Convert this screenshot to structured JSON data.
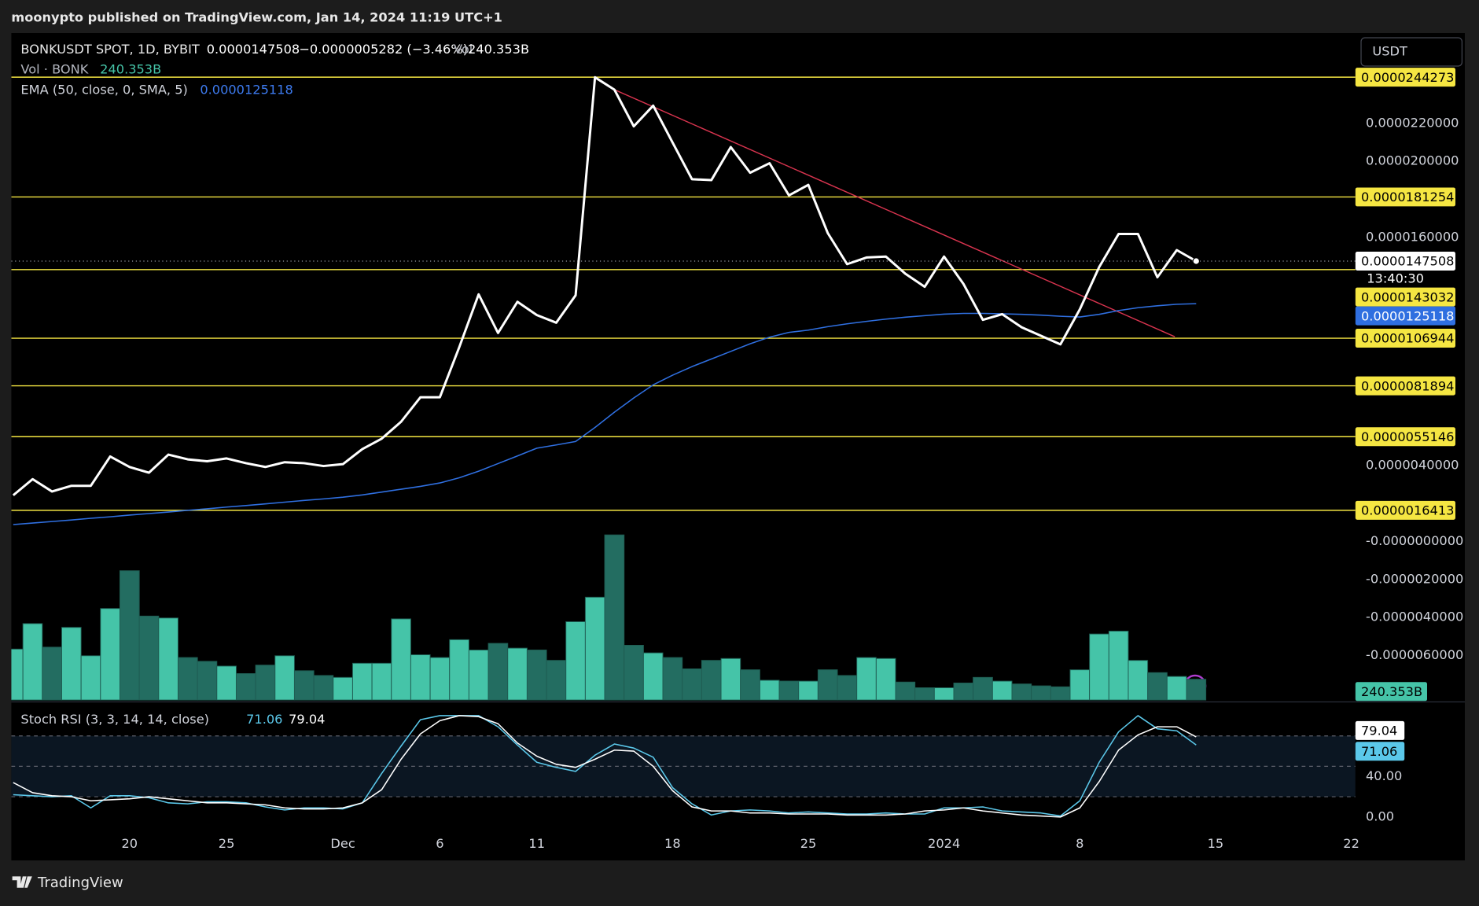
{
  "header": {
    "publisher": "moonypto published on TradingView.com, Jan 14, 2024 11:19 UTC+1",
    "currency": "USDT",
    "footer": "TradingView"
  },
  "chart_data": [
    {
      "type": "line",
      "symbol": "BONKUSDT SPOT, 1D, BYBIT",
      "change": "−0.0000005282 (−3.46%)",
      "countdown": "13:40:30",
      "ylim": [
        -8.34e-06,
        2.675e-05
      ],
      "yticks": [
        {
          "value": 2.2e-05,
          "label": "0.0000220000"
        },
        {
          "value": 2e-05,
          "label": "0.0000200000"
        },
        {
          "value": 1.6e-05,
          "label": "0.0000160000"
        },
        {
          "value": 4e-06,
          "label": "0.0000040000"
        },
        {
          "value": 0,
          "label": "-0.0000000000"
        },
        {
          "value": -2e-06,
          "label": "-0.0000020000"
        },
        {
          "value": -4e-06,
          "label": "-0.0000040000"
        },
        {
          "value": -6e-06,
          "label": "-0.0000060000"
        }
      ],
      "levels": [
        2.44273e-05,
        1.81254e-05,
        1.43032e-05,
        1.06944e-05,
        8.1894e-06,
        5.5146e-06,
        1.6413e-06
      ],
      "level_color": "#f5e642",
      "trendline": {
        "color": "#d9344f",
        "x": [
          31,
          59.9
        ],
        "values": [
          2.377e-05,
          1.077e-05
        ]
      },
      "series": [
        {
          "color": "#ffffff",
          "values": [
            2.43e-06,
            3.28e-06,
            2.63e-06,
            2.93e-06,
            2.93e-06,
            4.47e-06,
            3.92e-06,
            3.62e-06,
            4.57e-06,
            4.32e-06,
            4.22e-06,
            4.37e-06,
            4.12e-06,
            3.92e-06,
            4.17e-06,
            4.12e-06,
            3.97e-06,
            4.07e-06,
            4.86e-06,
            5.41e-06,
            6.3e-06,
            7.59e-06,
            7.59e-06,
            1.022e-05,
            1.3e-05,
            1.097e-05,
            1.261e-05,
            1.191e-05,
            1.151e-05,
            1.295e-05,
            2.442e-05,
            2.377e-05,
            2.184e-05,
            2.293e-05,
            2.099e-05,
            1.906e-05,
            1.901e-05,
            2.075e-05,
            1.94e-05,
            1.99e-05,
            1.821e-05,
            1.876e-05,
            1.623e-05,
            1.459e-05,
            1.494e-05,
            1.499e-05,
            1.409e-05,
            1.34e-05,
            1.499e-05,
            1.355e-05,
            1.166e-05,
            1.196e-05,
            1.127e-05,
            1.082e-05,
            1.037e-05,
            1.221e-05,
            1.444e-05,
            1.618e-05,
            1.618e-05,
            1.39e-05,
            1.533e-05,
            1.47508e-05,
            null,
            null,
            null,
            null,
            null,
            null,
            null,
            null
          ]
        },
        {
          "name": "EMA (50, close, 0, SMA, 5)",
          "color": "#2f6fe0",
          "values": [
            8.9e-07,
            9.7e-07,
            1.05e-06,
            1.13e-06,
            1.22e-06,
            1.3e-06,
            1.39e-06,
            1.47e-06,
            1.55e-06,
            1.64e-06,
            1.72e-06,
            1.81e-06,
            1.89e-06,
            1.98e-06,
            2.07e-06,
            2.16e-06,
            2.24e-06,
            2.33e-06,
            2.45e-06,
            2.6e-06,
            2.75e-06,
            2.9e-06,
            3.08e-06,
            3.35e-06,
            3.7e-06,
            4.1e-06,
            4.5e-06,
            4.91e-06,
            5.08e-06,
            5.26e-06,
            6e-06,
            6.8e-06,
            7.55e-06,
            8.24e-06,
            8.75e-06,
            9.2e-06,
            9.6e-06,
            1e-05,
            1.04e-05,
            1.075e-05,
            1.1e-05,
            1.112e-05,
            1.13e-05,
            1.145e-05,
            1.158e-05,
            1.17e-05,
            1.18e-05,
            1.188e-05,
            1.196e-05,
            1.2e-05,
            1.2e-05,
            1.198e-05,
            1.195e-05,
            1.191e-05,
            1.185e-05,
            1.181e-05,
            1.195e-05,
            1.215e-05,
            1.23e-05,
            1.24e-05,
            1.248e-05,
            1.25118e-05,
            null,
            null,
            null,
            null,
            null,
            null,
            null,
            null
          ]
        }
      ]
    },
    {
      "type": "bar",
      "name": "Vol · BONK",
      "label": "Vol",
      "up_color": "#45c4a8",
      "down_color": "#236d61",
      "ylim": [
        0,
        7724
      ],
      "values": [
        590,
        885,
        612,
        841,
        513,
        1060,
        1497,
        972,
        950,
        492,
        448,
        393,
        306,
        404,
        513,
        339,
        284,
        262,
        426,
        426,
        940,
        524,
        492,
        699,
        579,
        656,
        601,
        579,
        459,
        907,
        1191,
        1912,
        634,
        546,
        492,
        361,
        459,
        481,
        350,
        229,
        219,
        219,
        350,
        284,
        492,
        481,
        208,
        142,
        142,
        197,
        262,
        219,
        186,
        164,
        153,
        350,
        765,
        798,
        459,
        317,
        273,
        240.353,
        null,
        null,
        null,
        null,
        null,
        null,
        null,
        null
      ],
      "value_labels": [
        null,
        null,
        null,
        null,
        null,
        null,
        null,
        null,
        null,
        null,
        null,
        null,
        null,
        null,
        null,
        null,
        null,
        null,
        null,
        null,
        null,
        null,
        null,
        null,
        null,
        null,
        null,
        null,
        null,
        null,
        null,
        null,
        null,
        null,
        null,
        null,
        null,
        null,
        null,
        null,
        null,
        null,
        null,
        null,
        null,
        null,
        null,
        null,
        null,
        null,
        null,
        null,
        null,
        null,
        null,
        null,
        null,
        null,
        null,
        null,
        null,
        "240.353B",
        null,
        null,
        null,
        null,
        null,
        null,
        null,
        null
      ]
    },
    {
      "type": "line",
      "title": "Stoch RSI (3, 3, 14, 14, close)",
      "categories": [
        null,
        null,
        null,
        null,
        null,
        null,
        "20",
        null,
        null,
        null,
        null,
        "25",
        null,
        null,
        null,
        null,
        null,
        "Dec",
        null,
        null,
        null,
        null,
        "6",
        null,
        null,
        null,
        null,
        "11",
        null,
        null,
        null,
        null,
        null,
        null,
        "18",
        null,
        null,
        null,
        null,
        null,
        null,
        "25",
        null,
        null,
        null,
        null,
        null,
        null,
        "2024",
        null,
        null,
        null,
        null,
        null,
        null,
        "8",
        null,
        null,
        null,
        null,
        null,
        null,
        "15",
        null,
        null,
        null,
        null,
        null,
        null,
        "22"
      ],
      "ylim": [
        -13,
        112.6
      ],
      "yticks": [
        {
          "value": 40,
          "label": "40.00"
        },
        {
          "value": 0,
          "label": "0.00"
        }
      ],
      "levels": [
        80,
        50,
        20
      ],
      "series": [
        {
          "color": "#5bc8ea",
          "values": [
            22,
            21,
            20,
            21,
            9,
            21,
            21,
            19,
            14,
            13,
            15,
            15,
            14,
            10,
            7,
            9,
            9,
            8,
            14,
            43,
            70,
            96,
            100,
            100,
            100,
            89,
            71,
            54,
            49,
            45,
            61,
            72,
            68,
            59,
            29,
            13,
            2,
            6,
            7,
            6,
            4,
            5,
            4,
            3,
            3,
            4,
            3,
            3,
            9,
            9,
            10,
            6,
            5,
            4,
            1,
            16,
            54,
            84,
            100,
            87,
            85,
            71.06,
            null,
            null,
            null,
            null,
            null,
            null,
            null,
            null
          ]
        },
        {
          "color": "#ffffff",
          "values": [
            34,
            24,
            21,
            20,
            16,
            17,
            18,
            20,
            18,
            16,
            14,
            14,
            13,
            12,
            9,
            8,
            8,
            9,
            14,
            27,
            57,
            82,
            95,
            100,
            99,
            92,
            73,
            60,
            52,
            49,
            57,
            66,
            65,
            50,
            26,
            10,
            6,
            6,
            4,
            4,
            3,
            3,
            3,
            2,
            2,
            2,
            3,
            6,
            7,
            9,
            6,
            4,
            2,
            1,
            0,
            9,
            35,
            66,
            81,
            89,
            89,
            79.04,
            null,
            null,
            null,
            null,
            null,
            null,
            null,
            null
          ]
        }
      ]
    }
  ]
}
